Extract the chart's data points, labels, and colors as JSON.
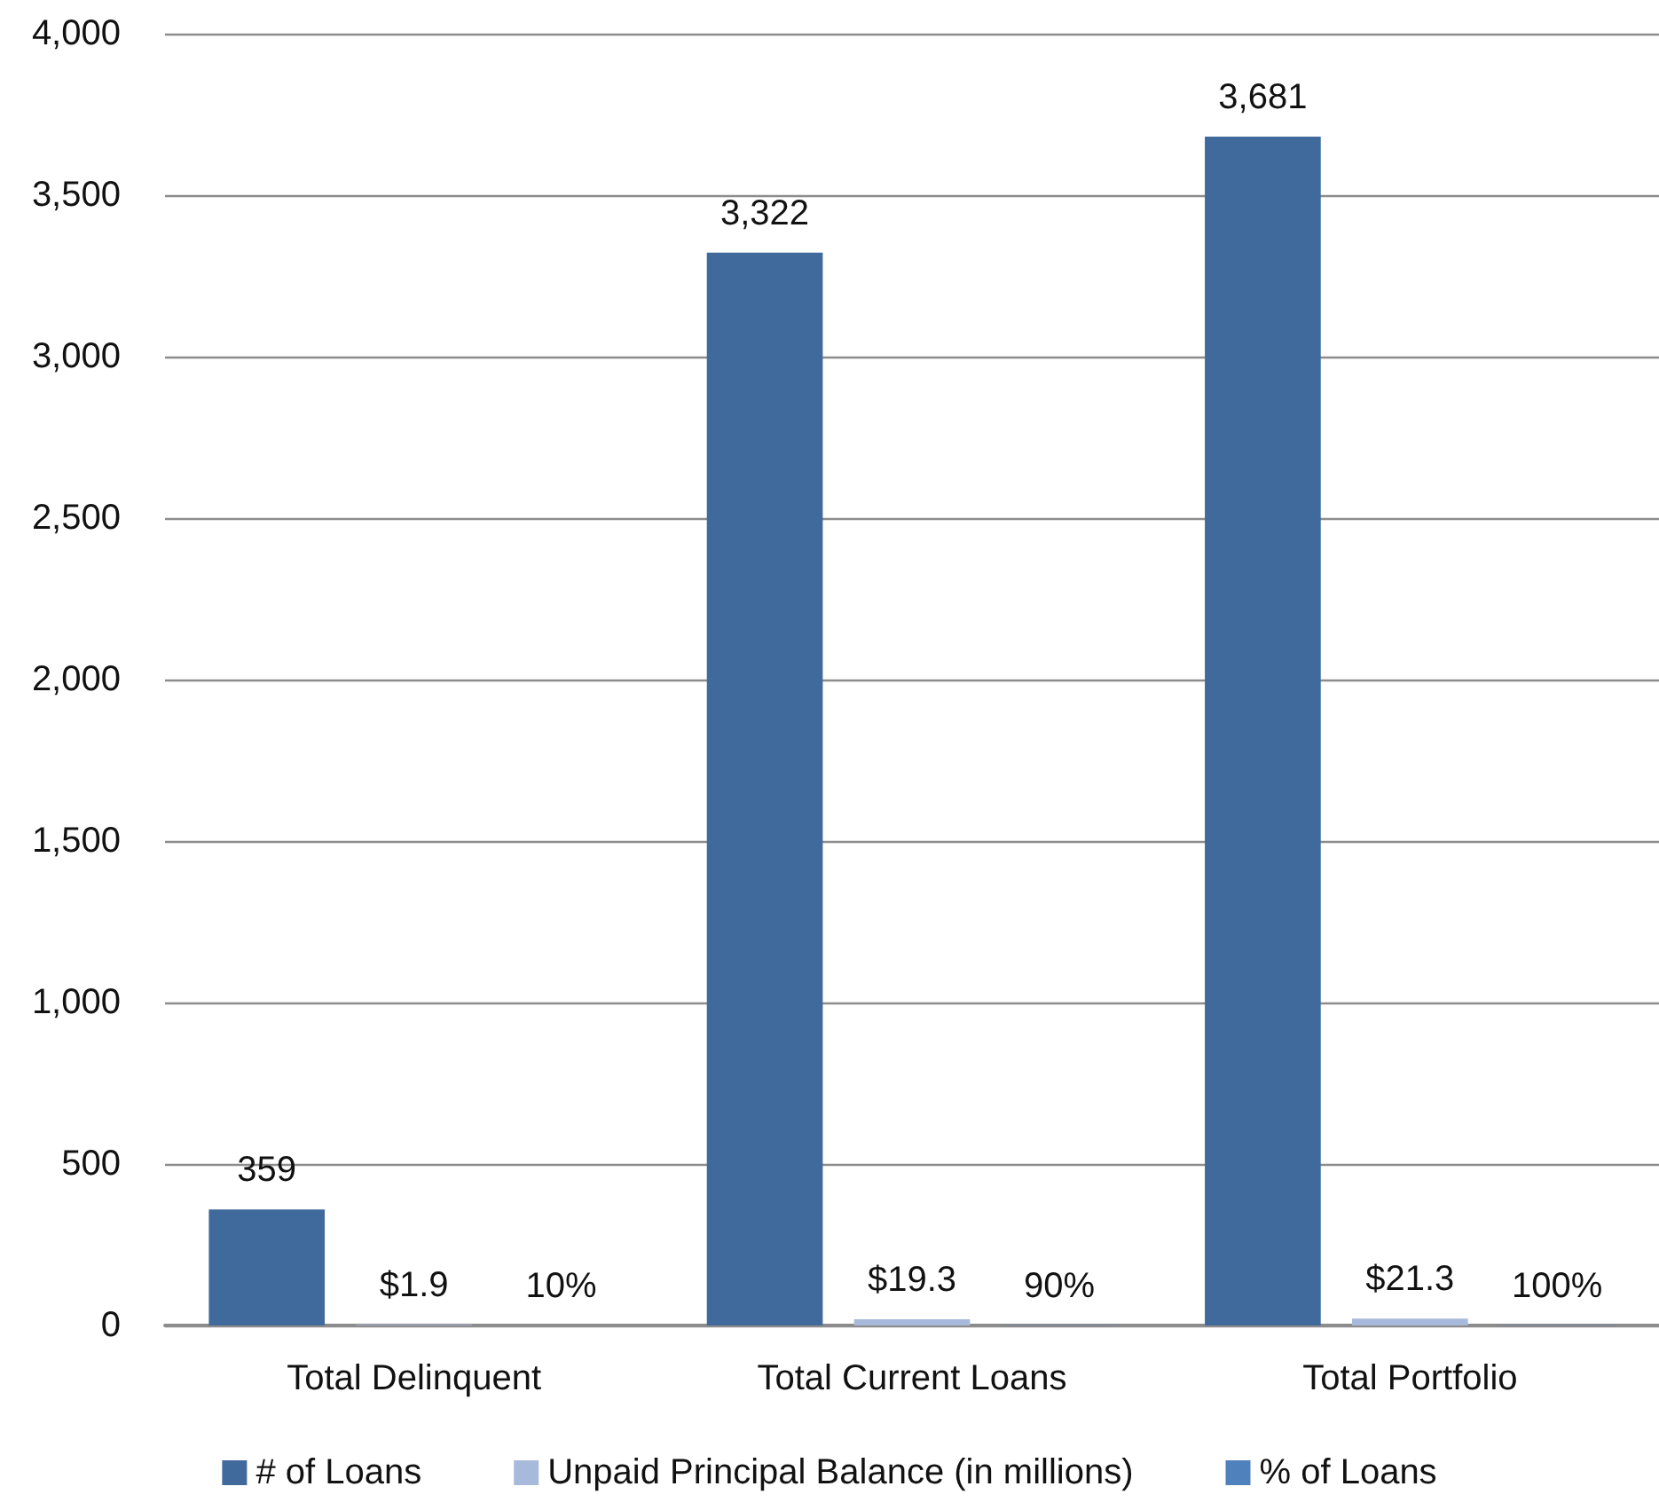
{
  "chart_data": {
    "type": "bar",
    "categories": [
      "Total Delinquent",
      "Total Current Loans",
      "Total Portfolio"
    ],
    "series": [
      {
        "name": "# of Loans",
        "color": "#416a9c",
        "values": [
          359,
          3322,
          3681
        ],
        "value_labels": [
          "359",
          "3,322",
          "3,681"
        ]
      },
      {
        "name": "Unpaid Principal Balance (in millions)",
        "color": "#a8badb",
        "values": [
          1.9,
          19.3,
          21.3
        ],
        "value_labels": [
          "$1.9",
          "$19.3",
          "$21.3"
        ]
      },
      {
        "name": "% of Loans",
        "color": "#4f81bd",
        "values": [
          0.1,
          0.9,
          1
        ],
        "value_labels": [
          "10%",
          "90%",
          "100%"
        ]
      }
    ],
    "ylim": [
      0,
      4000
    ],
    "yticks": [
      0,
      500,
      {
        "value": 1000,
        "label": "1,000"
      },
      {
        "value": 1500,
        "label": "1,500"
      },
      {
        "value": 2000,
        "label": "2,000"
      },
      {
        "value": 2500,
        "label": "2,500"
      },
      {
        "value": 3000,
        "label": "3,000"
      },
      {
        "value": 3500,
        "label": "3,500"
      },
      {
        "value": 4000,
        "label": "4,000"
      }
    ],
    "grid": "y",
    "legend": "bottom"
  }
}
